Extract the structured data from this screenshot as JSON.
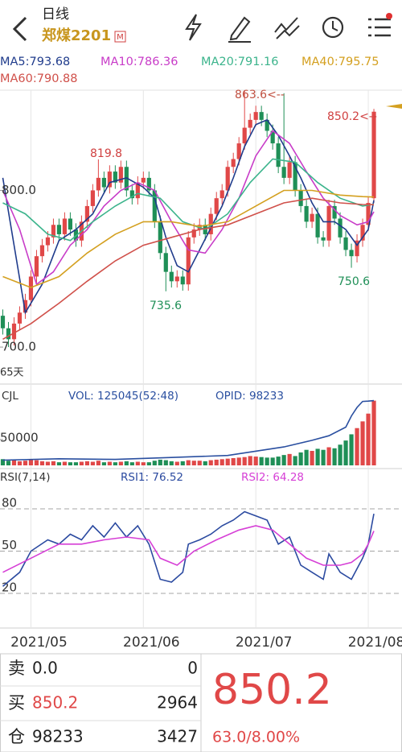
{
  "header": {
    "title": "日线",
    "symbol": "郑煤2201",
    "badge": "M"
  },
  "chart_data": [
    {
      "type": "candlestick",
      "open": [
        720,
        712,
        705,
        715,
        722,
        730,
        745,
        758,
        765,
        770,
        778,
        772,
        782,
        775,
        768,
        780,
        790,
        800,
        808,
        802,
        812,
        805,
        815,
        800,
        795,
        805,
        808,
        800,
        780,
        760,
        748,
        742,
        745,
        740,
        770,
        775,
        778,
        772,
        785,
        795,
        800,
        815,
        820,
        830,
        840,
        845,
        850,
        845,
        838,
        830,
        815,
        808,
        818,
        800,
        790,
        780,
        785,
        770,
        768,
        790,
        782,
        770,
        762,
        758,
        768,
        778,
        795
      ],
      "high": [
        724,
        716,
        719,
        726,
        734,
        749,
        762,
        769,
        774,
        782,
        782,
        786,
        786,
        779,
        784,
        794,
        804,
        819.8,
        812,
        816,
        816,
        819,
        819,
        804,
        809,
        812,
        812,
        804,
        784,
        764,
        752,
        749,
        749,
        774,
        779,
        782,
        782,
        789,
        799,
        804,
        819,
        824,
        834,
        863.6,
        849,
        854,
        854,
        849,
        842,
        834,
        862,
        822,
        822,
        804,
        794,
        789,
        789,
        774,
        794,
        794,
        786,
        774,
        766,
        772,
        782,
        796,
        852
      ],
      "low": [
        708,
        700,
        701,
        711,
        718,
        726,
        741,
        754,
        761,
        766,
        768,
        768,
        771,
        764,
        764,
        776,
        786,
        796,
        798,
        798,
        801,
        801,
        796,
        791,
        791,
        801,
        796,
        776,
        756,
        735.6,
        738,
        738,
        736,
        736,
        766,
        771,
        768,
        768,
        781,
        791,
        796,
        811,
        816,
        826,
        836,
        841,
        841,
        834,
        826,
        811,
        804,
        804,
        796,
        786,
        776,
        776,
        766,
        764,
        764,
        778,
        766,
        758,
        750.6,
        754,
        764,
        774,
        792
      ],
      "close": [
        712,
        705,
        715,
        722,
        730,
        745,
        758,
        765,
        770,
        778,
        772,
        782,
        775,
        768,
        780,
        790,
        800,
        808,
        802,
        812,
        805,
        815,
        800,
        795,
        805,
        808,
        800,
        780,
        760,
        748,
        742,
        745,
        740,
        770,
        775,
        778,
        772,
        785,
        795,
        800,
        815,
        820,
        830,
        840,
        845,
        850,
        845,
        838,
        830,
        815,
        808,
        818,
        800,
        790,
        780,
        785,
        770,
        768,
        790,
        782,
        770,
        762,
        758,
        768,
        778,
        792,
        850.2
      ],
      "up_color": "#e04848",
      "down_color": "#1f8f57",
      "xlim": [
        -0.5,
        71
      ],
      "xticks": [
        {
          "value": 5,
          "label": "2021/05"
        },
        {
          "value": 25,
          "label": "2021/06"
        },
        {
          "value": 45,
          "label": "2021/07"
        },
        {
          "value": 65,
          "label": "2021/08"
        }
      ],
      "ylim": [
        680,
        866
      ],
      "yticks": [
        {
          "value": 700,
          "label": "700.0"
        },
        {
          "value": 800,
          "label": "800.0"
        }
      ],
      "series": [
        {
          "name": "MA5:793.68",
          "color": "#203c8c",
          "x": [
            0,
            2,
            4,
            7,
            10,
            13,
            16,
            19,
            22,
            25,
            27,
            29,
            31,
            33,
            35,
            37,
            39,
            41,
            43,
            45,
            47,
            49,
            51,
            53,
            55,
            57,
            59,
            61,
            63,
            65,
            66
          ],
          "values": [
            808,
            765,
            722,
            740,
            768,
            775,
            785,
            805,
            808,
            802,
            795,
            770,
            752,
            748,
            762,
            776,
            790,
            808,
            828,
            842,
            845,
            835,
            822,
            808,
            792,
            780,
            780,
            775,
            765,
            775,
            793.68
          ]
        },
        {
          "name": "MA10:786.36",
          "color": "#c83cc8",
          "x": [
            0,
            3,
            6,
            9,
            12,
            15,
            18,
            21,
            24,
            27,
            30,
            33,
            36,
            39,
            42,
            45,
            48,
            51,
            54,
            57,
            60,
            63,
            65,
            66
          ],
          "values": [
            800,
            775,
            740,
            748,
            765,
            775,
            790,
            800,
            805,
            800,
            780,
            762,
            760,
            775,
            795,
            822,
            838,
            830,
            812,
            795,
            784,
            778,
            780,
            786.36
          ]
        },
        {
          "name": "MA20:791.16",
          "color": "#3cb48c",
          "x": [
            0,
            4,
            8,
            12,
            16,
            20,
            24,
            28,
            32,
            36,
            40,
            44,
            48,
            52,
            56,
            60,
            64,
            66
          ],
          "values": [
            792,
            785,
            772,
            768,
            780,
            790,
            798,
            795,
            780,
            775,
            785,
            805,
            820,
            818,
            805,
            795,
            790,
            791.16
          ]
        },
        {
          "name": "MA40:795.75",
          "color": "#d4a020",
          "x": [
            0,
            5,
            10,
            15,
            20,
            25,
            30,
            35,
            40,
            45,
            50,
            55,
            60,
            64,
            66
          ],
          "values": [
            745,
            738,
            745,
            760,
            772,
            780,
            780,
            777,
            780,
            790,
            800,
            800,
            797,
            796,
            795.75
          ]
        },
        {
          "name": "MA60:790.88",
          "color": "#d0504a",
          "x": [
            0,
            5,
            10,
            15,
            20,
            25,
            30,
            35,
            40,
            45,
            50,
            55,
            60,
            64,
            66
          ],
          "values": [
            705,
            715,
            728,
            742,
            755,
            765,
            770,
            775,
            778,
            785,
            792,
            795,
            792,
            791,
            790.88
          ]
        }
      ],
      "annotations": [
        "863.6<--",
        "819.8",
        "735.6",
        "750.6",
        "850.2<--"
      ],
      "footnote": "65天"
    },
    {
      "type": "bar",
      "title": "CJL",
      "subtitle": "VOL: 125045(52:48)",
      "values": [
        12000,
        9000,
        10000,
        8000,
        9000,
        11000,
        10000,
        8000,
        7000,
        8000,
        6000,
        7000,
        6000,
        6000,
        7000,
        8000,
        7000,
        9000,
        6000,
        7000,
        6000,
        7000,
        8000,
        6000,
        7000,
        6000,
        6000,
        9000,
        11000,
        10000,
        8000,
        7000,
        8000,
        10000,
        9000,
        9000,
        8000,
        10000,
        11000,
        12000,
        13000,
        14000,
        15000,
        16000,
        18000,
        17000,
        16000,
        15000,
        15000,
        17000,
        20000,
        22000,
        18000,
        25000,
        30000,
        28000,
        32000,
        30000,
        35000,
        33000,
        40000,
        48000,
        60000,
        72000,
        85000,
        100000,
        125045
      ],
      "ylim": [
        0,
        140000
      ],
      "yticks": [
        50000
      ],
      "y2lim": [
        0,
        110000
      ],
      "series": [
        {
          "name": "OPID: 98233",
          "axis": "y2",
          "color": "#2a4fa0",
          "x": [
            0,
            10,
            20,
            30,
            40,
            50,
            55,
            58,
            61,
            62,
            63,
            64,
            65,
            66
          ],
          "values": [
            8000,
            10000,
            9000,
            12000,
            15000,
            28000,
            38000,
            45000,
            58000,
            75000,
            88000,
            97000,
            97500,
            98233
          ]
        }
      ]
    },
    {
      "type": "line",
      "title": "RSI(7,14)",
      "ylim": [
        0,
        100
      ],
      "yticks": [
        20,
        50,
        80
      ],
      "grid": true,
      "series": [
        {
          "name": "RSI1: 76.52",
          "color": "#2b4aa0",
          "x": [
            0,
            3,
            5,
            8,
            10,
            12,
            14,
            16,
            18,
            20,
            22,
            24,
            26,
            28,
            30,
            32,
            33,
            35,
            37,
            39,
            41,
            43,
            45,
            47,
            49,
            51,
            53,
            55,
            57,
            58,
            60,
            62,
            64,
            65,
            66
          ],
          "values": [
            25,
            35,
            50,
            58,
            55,
            62,
            58,
            68,
            60,
            70,
            60,
            68,
            55,
            30,
            28,
            35,
            55,
            58,
            62,
            68,
            72,
            78,
            75,
            72,
            55,
            60,
            40,
            35,
            30,
            48,
            35,
            30,
            45,
            55,
            76.52
          ]
        },
        {
          "name": "RSI2: 64.28",
          "color": "#d63fd6",
          "x": [
            0,
            5,
            10,
            14,
            18,
            22,
            26,
            28,
            31,
            34,
            38,
            42,
            45,
            48,
            51,
            54,
            57,
            60,
            62,
            64,
            65,
            66
          ],
          "values": [
            35,
            45,
            55,
            55,
            58,
            60,
            58,
            45,
            40,
            50,
            58,
            65,
            68,
            65,
            55,
            45,
            40,
            40,
            42,
            48,
            55,
            64.28
          ]
        }
      ]
    }
  ],
  "quote": {
    "rows": [
      {
        "label": "卖",
        "price": "0.0",
        "qty": "0"
      },
      {
        "label": "买",
        "price": "850.2",
        "qty": "2964"
      },
      {
        "label": "仓",
        "price": "98233",
        "qty": "3427"
      }
    ],
    "last": "850.2",
    "change": "63.0/8.00%"
  }
}
